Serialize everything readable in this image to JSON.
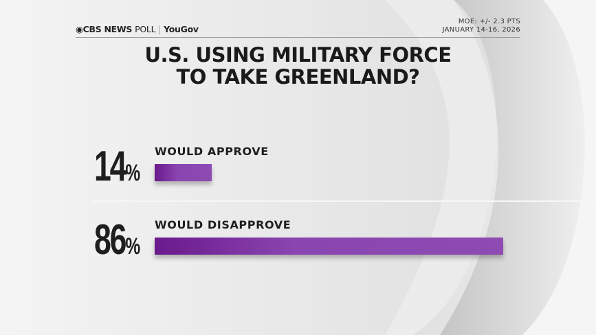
{
  "header": {
    "brand_cbs": "CBS NEWS",
    "brand_poll": "POLL",
    "brand_partner": "YouGov",
    "moe": "MOE: +/- 2.3 PTS",
    "dates": "JANUARY 14-16, 2026"
  },
  "chart_data": {
    "type": "bar",
    "orientation": "horizontal",
    "title_line1": "U.S. USING MILITARY FORCE",
    "title_line2": "TO TAKE GREENLAND?",
    "categories": [
      "WOULD APPROVE",
      "WOULD DISAPPROVE"
    ],
    "values": [
      14,
      86
    ],
    "value_labels": [
      "14",
      "86"
    ],
    "unit": "%",
    "xlim": [
      0,
      100
    ],
    "bar_color": "#8a45b0"
  }
}
